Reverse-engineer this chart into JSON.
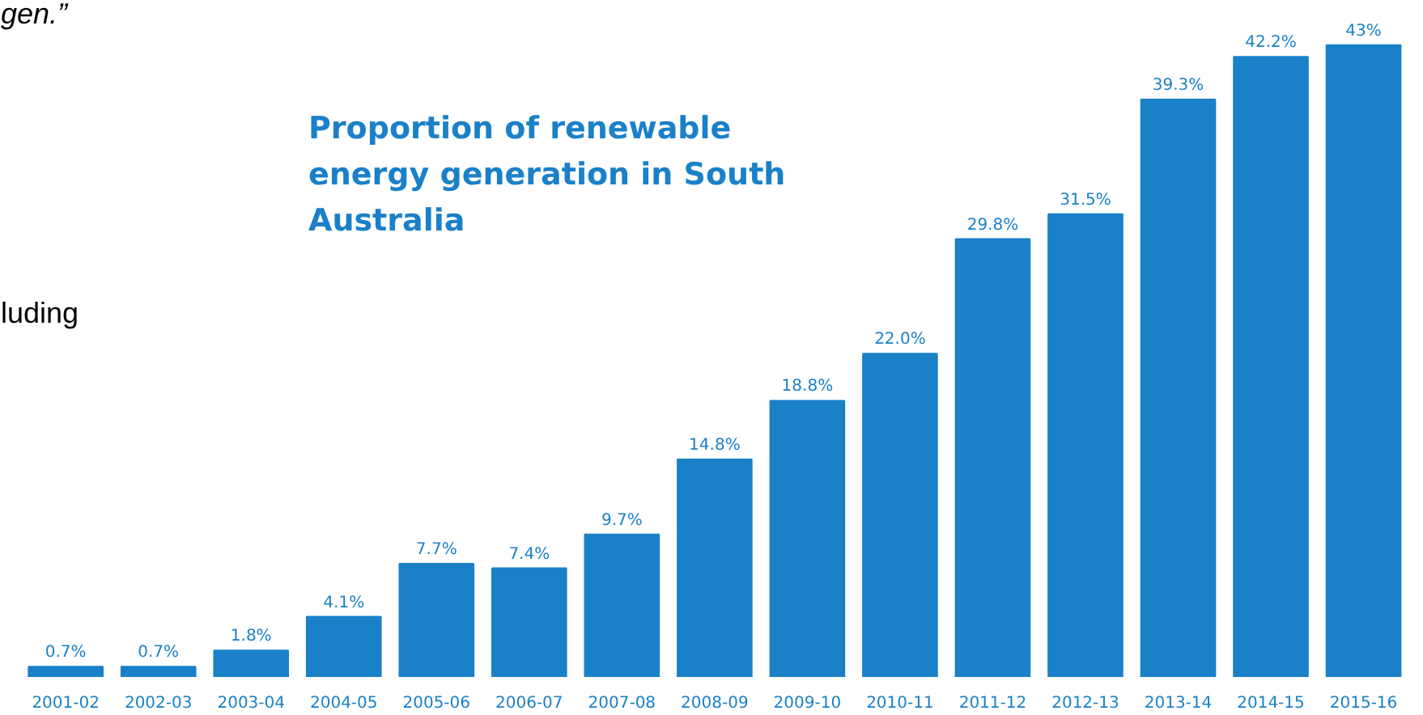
{
  "chart_data": {
    "type": "bar",
    "title": "Proportion of renewable energy generation in South Australia",
    "annotations": [
      "gen.”",
      "luding"
    ],
    "categories": [
      "2001-02",
      "2002-03",
      "2003-04",
      "2004-05",
      "2005-06",
      "2006-07",
      "2007-08",
      "2008-09",
      "2009-10",
      "2010-11",
      "2011-12",
      "2012-13",
      "2013-14",
      "2014-15",
      "2015-16"
    ],
    "values": [
      0.7,
      0.7,
      1.8,
      4.1,
      7.7,
      7.4,
      9.7,
      14.8,
      18.8,
      22.0,
      29.8,
      31.5,
      39.3,
      42.2,
      43
    ],
    "value_labels": [
      "0.7%",
      "0.7%",
      "1.8%",
      "4.1%",
      "7.7%",
      "7.4%",
      "9.7%",
      "14.8%",
      "18.8%",
      "22.0%",
      "29.8%",
      "31.5%",
      "39.3%",
      "42.2%",
      "43%"
    ],
    "color": "#1a80c8",
    "tick_labels": "x",
    "grid": false
  }
}
